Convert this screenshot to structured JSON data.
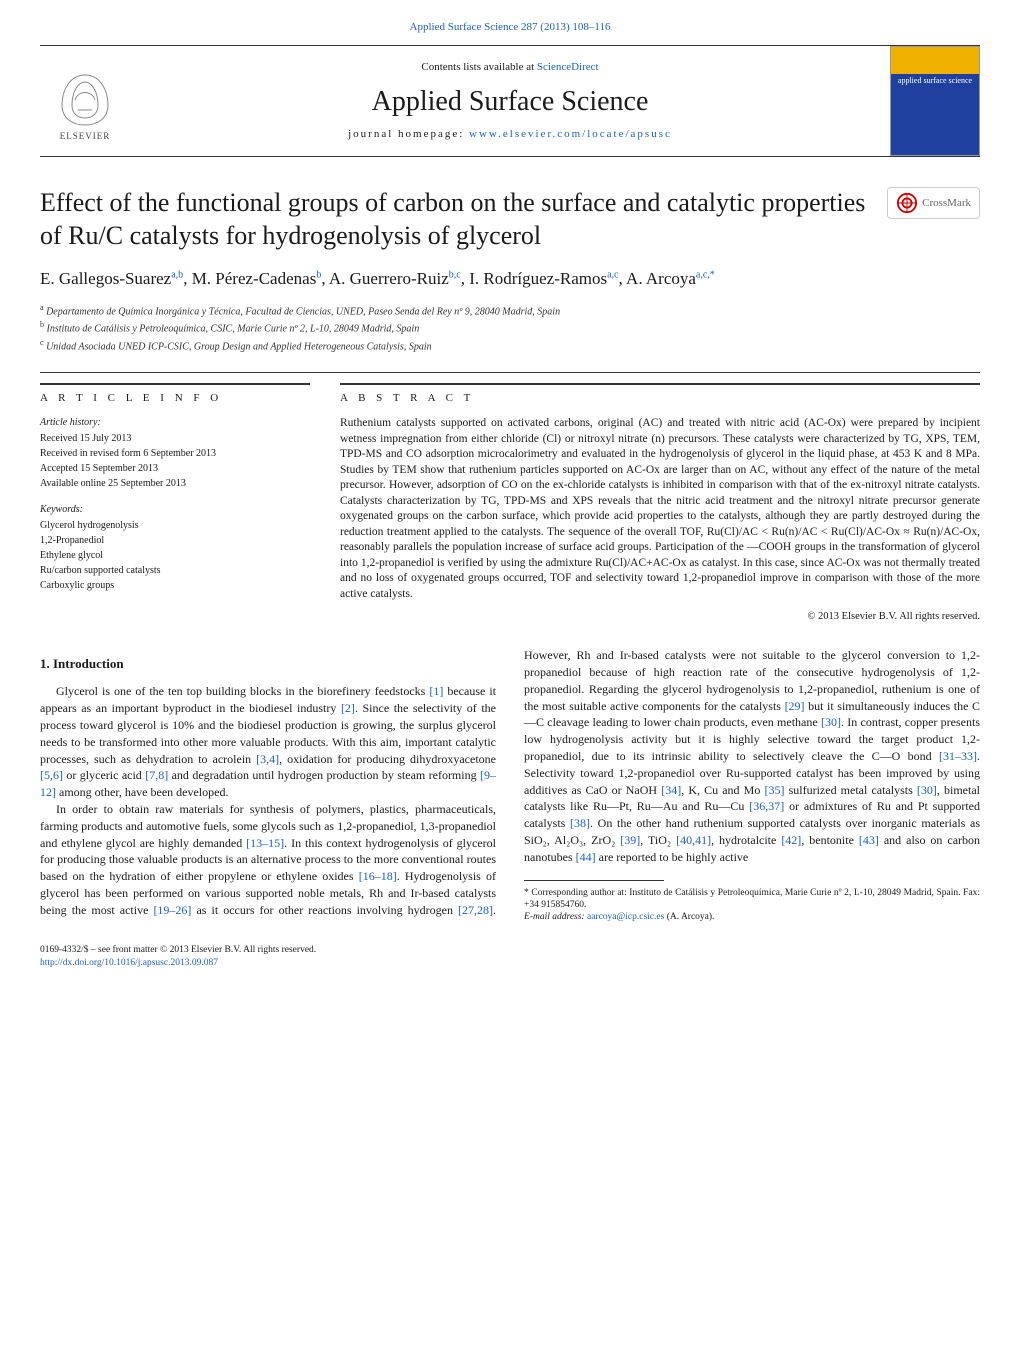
{
  "header": {
    "citation_link": "Applied Surface Science 287 (2013) 108–116",
    "contents_prefix": "Contents lists available at ",
    "contents_link": "ScienceDirect",
    "journal_name": "Applied Surface Science",
    "homepage_prefix": "journal homepage: ",
    "homepage_url": "www.elsevier.com/locate/apsusc",
    "cover_label": "applied\nsurface science",
    "elsevier_label": "ELSEVIER",
    "crossmark_label": "CrossMark"
  },
  "paper": {
    "title": "Effect of the functional groups of carbon on the surface and catalytic properties of Ru/C catalysts for hydrogenolysis of glycerol",
    "authors_html": "E. Gallegos-Suarez<sup>a,b</sup>, M. Pérez-Cadenas<sup>b</sup>, A. Guerrero-Ruiz<sup>b,c</sup>, I. Rodríguez-Ramos<sup>a,c</sup>, A. Arcoya<sup>a,c,*</sup>",
    "affiliations": [
      {
        "tag": "a",
        "text": "Departamento de Química Inorgánica y Técnica, Facultad de Ciencias, UNED, Paseo Senda del Rey nº 9, 28040 Madrid, Spain"
      },
      {
        "tag": "b",
        "text": "Instituto de Catálisis y Petroleoquímica, CSIC, Marie Curie nº 2, L-10, 28049 Madrid, Spain"
      },
      {
        "tag": "c",
        "text": "Unidad Asociada UNED ICP-CSIC, Group Design and Applied Heterogeneous Catalysis, Spain"
      }
    ]
  },
  "article_info": {
    "label": "a r t i c l e   i n f o",
    "history_label": "Article history:",
    "history": [
      "Received 15 July 2013",
      "Received in revised form 6 September 2013",
      "Accepted 15 September 2013",
      "Available online 25 September 2013"
    ],
    "keywords_label": "Keywords:",
    "keywords": [
      "Glycerol hydrogenolysis",
      "1,2-Propanediol",
      "Ethylene glycol",
      "Ru/carbon supported catalysts",
      "Carboxylic groups"
    ]
  },
  "abstract": {
    "label": "a b s t r a c t",
    "text": "Ruthenium catalysts supported on activated carbons, original (AC) and treated with nitric acid (AC-Ox) were prepared by incipient wetness impregnation from either chloride (Cl) or nitroxyl nitrate (n) precursors. These catalysts were characterized by TG, XPS, TEM, TPD-MS and CO adsorption microcalorimetry and evaluated in the hydrogenolysis of glycerol in the liquid phase, at 453 K and 8 MPa. Studies by TEM show that ruthenium particles supported on AC-Ox are larger than on AC, without any effect of the nature of the metal precursor. However, adsorption of CO on the ex-chloride catalysts is inhibited in comparison with that of the ex-nitroxyl nitrate catalysts. Catalysts characterization by TG, TPD-MS and XPS reveals that the nitric acid treatment and the nitroxyl nitrate precursor generate oxygenated groups on the carbon surface, which provide acid properties to the catalysts, although they are partly destroyed during the reduction treatment applied to the catalysts. The sequence of the overall TOF, Ru(Cl)/AC < Ru(n)/AC < Ru(Cl)/AC-Ox ≈ Ru(n)/AC-Ox, reasonably parallels the population increase of surface acid groups. Participation of the —COOH groups in the transformation of glycerol into 1,2-propanediol is verified by using the admixture Ru(Cl)/AC+AC-Ox as catalyst. In this case, since AC-Ox was not thermally treated and no loss of oxygenated groups occurred, TOF and selectivity toward 1,2-propanediol improve in comparison with those of the more active catalysts.",
    "copyright": "© 2013 Elsevier B.V. All rights reserved."
  },
  "body": {
    "section_heading": "1.  Introduction",
    "para1_pre": "Glycerol is one of the ten top building blocks in the biorefinery feedstocks ",
    "ref1": "[1]",
    "para1_mid1": " because it appears as an important byproduct in the biodiesel industry ",
    "ref2": "[2]",
    "para1_mid2": ". Since the selectivity of the process toward glycerol is 10% and the biodiesel production is growing, the surplus glycerol needs to be transformed into other more valuable products. With this aim, important catalytic processes, such as dehydration to acrolein ",
    "ref34": "[3,4]",
    "para1_mid3": ", oxidation for producing dihydroxyacetone ",
    "ref56": "[5,6]",
    "para1_mid4": " or glyceric acid ",
    "ref78": "[7,8]",
    "para1_mid5": " and degradation until hydrogen production by steam reforming ",
    "ref912": "[9–12]",
    "para1_end": " among other, have been developed.",
    "para2_pre": "In order to obtain raw materials for synthesis of polymers, plastics, pharmaceuticals, farming products and automotive fuels, some glycols such as 1,2-propanediol, 1,3-propanediol and ethylene glycol are highly demanded ",
    "ref1315": "[13–15]",
    "para2_mid": ". In this context hydrogenolysis of glycerol for producing those valuable products is an alternative",
    "col2_pre": "process to the more conventional routes based on the hydration of either propylene or ethylene oxides ",
    "ref1618": "[16–18]",
    "col2_1": ". Hydrogenolysis of glycerol has been performed on various supported noble metals, Rh and Ir-based catalysts being the most active ",
    "ref1926": "[19–26]",
    "col2_2": " as it occurs for other reactions involving hydrogen ",
    "ref2728": "[27,28]",
    "col2_3": ". However, Rh and Ir-based catalysts were not suitable to the glycerol conversion to 1,2-propanediol because of high reaction rate of the consecutive hydrogenolysis of 1,2-propanediol. Regarding the glycerol hydrogenolysis to 1,2-propanediol, ruthenium is one of the most suitable active components for the catalysts ",
    "ref29": "[29]",
    "col2_4": " but it simultaneously induces the C—C cleavage leading to lower chain products, even methane ",
    "ref30": "[30]",
    "col2_5": ". In contrast, copper presents low hydrogenolysis activity but it is highly selective toward the target product 1,2-propanediol, due to its intrinsic ability to selectively cleave the C—O bond ",
    "ref3133": "[31–33]",
    "col2_6": ". Selectivity toward 1,2-propanediol over Ru-supported catalyst has been improved by using additives as CaO or NaOH ",
    "ref34b": "[34]",
    "col2_7": ", K, Cu and Mo ",
    "ref35": "[35]",
    "col2_8": " sulfurized metal catalysts ",
    "ref30b": "[30]",
    "col2_9": ", bimetal catalysts like Ru—Pt, Ru—Au and Ru—Cu ",
    "ref3637": "[36,37]",
    "col2_10": " or admixtures of Ru and Pt supported catalysts ",
    "ref38": "[38]",
    "col2_11": ". On the other hand ruthenium supported catalysts over inorganic materials as SiO₂, Al₂O₃, ZrO₂ ",
    "ref39": "[39]",
    "col2_12": ", TiO₂ ",
    "ref4041": "[40,41]",
    "col2_13": ", hydrotalcite ",
    "ref42": "[42]",
    "col2_14": ", bentonite ",
    "ref43": "[43]",
    "col2_15": " and also on carbon nanotubes ",
    "ref44": "[44]",
    "col2_16": " are reported to be highly active"
  },
  "footnote": {
    "corresponding": "* Corresponding author at: Instituto de Catálisis y Petroleoquímica, Marie Curie nº 2, L-10, 28049 Madrid, Spain. Fax: +34 915854760.",
    "email_label": "E-mail address: ",
    "email": "aarcoya@icp.csic.es",
    "email_suffix": " (A. Arcoya)."
  },
  "footer": {
    "issn_line": "0169-4332/$ – see front matter © 2013 Elsevier B.V. All rights reserved.",
    "doi": "http://dx.doi.org/10.1016/j.apsusc.2013.09.087"
  },
  "colors": {
    "link": "#2060c0",
    "text": "#1a1a1a",
    "rule": "#333333"
  }
}
